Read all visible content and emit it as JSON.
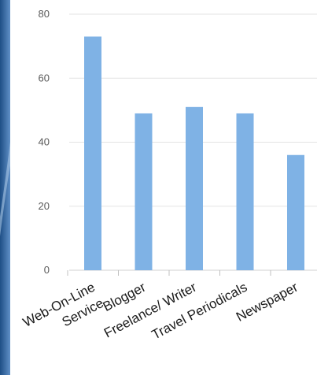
{
  "colors": {
    "bar": "#7fb2e5",
    "sidebar_dark": "#1e4f86",
    "sidebar_light": "#5f8fc6",
    "gridline": "#e3e3e3",
    "tick_text": "#595959",
    "category_text": "#1a1a1a"
  },
  "chart_data": {
    "type": "bar",
    "categories": [
      "Web-On-Line Service",
      "Blogger",
      "Freelance/ Writer",
      "Travel Periodicals",
      "Newspaper"
    ],
    "category_lines": [
      [
        "Web-On-Line",
        "Service"
      ],
      [
        "Blogger"
      ],
      [
        "Freelance/ Writer"
      ],
      [
        "Travel Periodicals"
      ],
      [
        "Newspaper"
      ]
    ],
    "values": [
      73,
      49,
      51,
      49,
      36
    ],
    "yticks": [
      0,
      20,
      40,
      60,
      80
    ],
    "ylim": [
      0,
      80
    ],
    "grid": true,
    "title": "",
    "xlabel": "",
    "ylabel": ""
  }
}
